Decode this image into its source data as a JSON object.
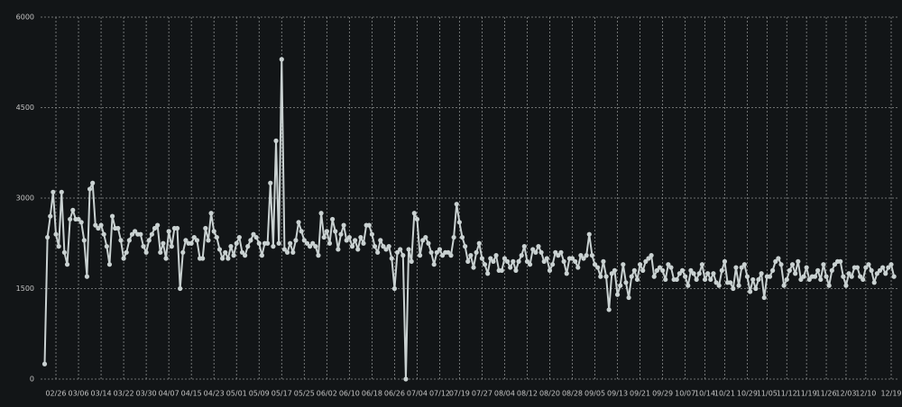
{
  "chart_data": {
    "type": "line",
    "categories": [
      null,
      null,
      null,
      null,
      "02/26",
      null,
      null,
      null,
      null,
      null,
      null,
      null,
      "03/06",
      null,
      null,
      null,
      null,
      null,
      null,
      null,
      "03/14",
      null,
      null,
      null,
      null,
      null,
      null,
      null,
      "03/22",
      null,
      null,
      null,
      null,
      null,
      null,
      null,
      "03/30",
      null,
      null,
      null,
      null,
      null,
      null,
      null,
      "04/07",
      null,
      null,
      null,
      null,
      null,
      null,
      null,
      "04/15",
      null,
      null,
      null,
      null,
      null,
      null,
      null,
      "04/23",
      null,
      null,
      null,
      null,
      null,
      null,
      null,
      "05/01",
      null,
      null,
      null,
      null,
      null,
      null,
      null,
      "05/09",
      null,
      null,
      null,
      null,
      null,
      null,
      null,
      "05/17",
      null,
      null,
      null,
      null,
      null,
      null,
      null,
      "05/25",
      null,
      null,
      null,
      null,
      null,
      null,
      null,
      "06/02",
      null,
      null,
      null,
      null,
      null,
      null,
      null,
      "06/10",
      null,
      null,
      null,
      null,
      null,
      null,
      null,
      "06/18",
      null,
      null,
      null,
      null,
      null,
      null,
      null,
      "06/26",
      null,
      null,
      null,
      null,
      null,
      null,
      null,
      "07/04",
      null,
      null,
      null,
      null,
      null,
      null,
      null,
      "07/12",
      null,
      null,
      null,
      null,
      null,
      null,
      "07/19",
      null,
      null,
      null,
      null,
      null,
      null,
      null,
      "07/27",
      null,
      null,
      null,
      null,
      null,
      null,
      null,
      "08/04",
      null,
      null,
      null,
      null,
      null,
      null,
      null,
      "08/12",
      null,
      null,
      null,
      null,
      null,
      null,
      null,
      "08/20",
      null,
      null,
      null,
      null,
      null,
      null,
      null,
      "08/28",
      null,
      null,
      null,
      null,
      null,
      null,
      null,
      "09/05",
      null,
      null,
      null,
      null,
      null,
      null,
      null,
      "09/13",
      null,
      null,
      null,
      null,
      null,
      null,
      null,
      "09/21",
      null,
      null,
      null,
      null,
      null,
      null,
      null,
      "09/29",
      null,
      null,
      null,
      null,
      null,
      null,
      null,
      "10/07",
      null,
      null,
      null,
      null,
      null,
      null,
      "10/14",
      null,
      null,
      null,
      null,
      null,
      null,
      "10/21",
      null,
      null,
      null,
      null,
      null,
      null,
      null,
      "10/29",
      null,
      null,
      null,
      null,
      null,
      null,
      "11/05",
      null,
      null,
      null,
      null,
      null,
      null,
      "11/12",
      null,
      null,
      null,
      null,
      null,
      null,
      "11/19",
      null,
      null,
      null,
      null,
      null,
      null,
      "11/26",
      null,
      null,
      null,
      null,
      null,
      null,
      "12/03",
      null,
      null,
      null,
      null,
      null,
      null,
      "12/10",
      null,
      null,
      null,
      null,
      null,
      null,
      null,
      null,
      "12/19",
      null
    ],
    "values": [
      250,
      2350,
      2700,
      3100,
      2400,
      2200,
      3100,
      2100,
      1900,
      2650,
      2800,
      2650,
      2650,
      2600,
      2300,
      1700,
      3150,
      3250,
      2550,
      2500,
      2550,
      2400,
      2200,
      1900,
      2700,
      2500,
      2500,
      2300,
      2000,
      2100,
      2300,
      2400,
      2450,
      2400,
      2400,
      2200,
      2100,
      2300,
      2400,
      2500,
      2550,
      2100,
      2250,
      2000,
      2450,
      2200,
      2500,
      2500,
      1500,
      2100,
      2300,
      2250,
      2250,
      2350,
      2300,
      2000,
      2000,
      2500,
      2300,
      2750,
      2450,
      2350,
      2150,
      2000,
      2100,
      2000,
      2200,
      2050,
      2250,
      2350,
      2100,
      2050,
      2200,
      2300,
      2400,
      2350,
      2250,
      2050,
      2250,
      2250,
      3250,
      2200,
      3950,
      2250,
      5300,
      2150,
      2100,
      2250,
      2100,
      2300,
      2600,
      2450,
      2300,
      2250,
      2200,
      2250,
      2200,
      2050,
      2750,
      2350,
      2450,
      2250,
      2650,
      2450,
      2150,
      2400,
      2550,
      2300,
      2350,
      2200,
      2300,
      2150,
      2350,
      2250,
      2550,
      2550,
      2400,
      2200,
      2100,
      2300,
      2200,
      2150,
      2200,
      2000,
      1500,
      2100,
      2150,
      2050,
      0,
      2150,
      1950,
      2750,
      2650,
      2050,
      2300,
      2350,
      2250,
      2100,
      1900,
      2100,
      2150,
      2050,
      2100,
      2100,
      2050,
      2350,
      2900,
      2600,
      2350,
      2200,
      1950,
      2050,
      1850,
      2100,
      2250,
      2000,
      1900,
      1750,
      2000,
      1950,
      2050,
      1800,
      1800,
      2000,
      1950,
      1850,
      1950,
      1800,
      1950,
      2050,
      2200,
      1950,
      1900,
      2150,
      2100,
      2200,
      2100,
      1950,
      2000,
      1800,
      1900,
      2100,
      2050,
      2100,
      1950,
      1750,
      2000,
      2000,
      1950,
      1850,
      2050,
      2000,
      2050,
      2400,
      2050,
      1900,
      1850,
      1700,
      1950,
      1700,
      1150,
      1750,
      1800,
      1400,
      1550,
      1900,
      1600,
      1350,
      1700,
      1800,
      1650,
      1900,
      1800,
      1950,
      2000,
      2050,
      1700,
      1800,
      1850,
      1800,
      1650,
      1900,
      1850,
      1650,
      1650,
      1750,
      1800,
      1700,
      1550,
      1800,
      1750,
      1650,
      1750,
      1900,
      1650,
      1750,
      1650,
      1750,
      1600,
      1550,
      1800,
      1950,
      1600,
      1600,
      1500,
      1850,
      1550,
      1850,
      1900,
      1700,
      1450,
      1650,
      1500,
      1650,
      1750,
      1350,
      1700,
      1700,
      1800,
      1950,
      2000,
      1900,
      1550,
      1650,
      1800,
      1900,
      1750,
      1950,
      1650,
      1700,
      1850,
      1650,
      1700,
      1700,
      1800,
      1650,
      1900,
      1700,
      1550,
      1800,
      1900,
      1950,
      1950,
      1700,
      1550,
      1750,
      1700,
      1850,
      1850,
      1700,
      1650,
      1850,
      1900,
      1800,
      1600,
      1750,
      1800,
      1850,
      1750,
      1850,
      1900,
      1700
    ],
    "color": "#c9d1d1",
    "ylim": [
      0,
      6000
    ],
    "yticks": [
      0,
      1500,
      3000,
      4500,
      6000
    ],
    "grid": true
  }
}
